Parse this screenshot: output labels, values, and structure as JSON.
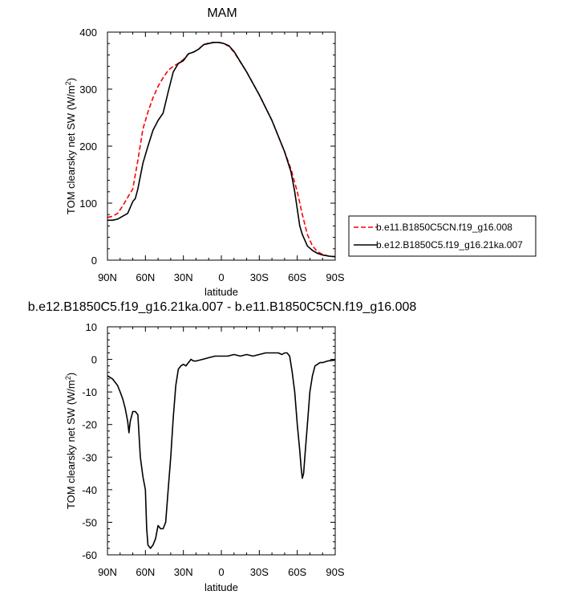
{
  "chart_data": [
    {
      "type": "line",
      "title": "MAM",
      "xlabel": "latitude",
      "ylabel_main": "TOM clearsky net SW (W/m",
      "ylabel_sup": "2",
      "ylabel_close": ")",
      "xlim": [
        90,
        -90
      ],
      "ylim": [
        0,
        400
      ],
      "x_ticks": [
        90,
        60,
        30,
        0,
        -30,
        -60,
        -90
      ],
      "x_tick_labels": [
        "90N",
        "60N",
        "30N",
        "0",
        "30S",
        "60S",
        "90S"
      ],
      "y_ticks": [
        0,
        100,
        200,
        300,
        400
      ],
      "y_tick_labels": [
        "0",
        "100",
        "200",
        "300",
        "400"
      ],
      "legend_position": "right",
      "series": [
        {
          "name": "b.e11.B1850C5CN.f19_g16.008",
          "color": "#ff0000",
          "dash": "dashed",
          "x": [
            90,
            86,
            82,
            78,
            74,
            70,
            66,
            62,
            58,
            54,
            50,
            46,
            42,
            38,
            34,
            30,
            26,
            22,
            18,
            14,
            10,
            6,
            2,
            -2,
            -6,
            -10,
            -20,
            -30,
            -40,
            -50,
            -55,
            -60,
            -64,
            -68,
            -72,
            -76,
            -80,
            -85,
            -90
          ],
          "values": [
            75,
            77,
            82,
            95,
            110,
            125,
            175,
            230,
            260,
            285,
            305,
            320,
            333,
            340,
            345,
            352,
            362,
            365,
            370,
            378,
            381,
            382,
            382,
            380,
            375,
            365,
            330,
            290,
            245,
            190,
            160,
            120,
            80,
            45,
            25,
            15,
            10,
            7,
            6
          ]
        },
        {
          "name": "b.e12.B1850C5.f19_g16.21ka.007",
          "color": "#000000",
          "dash": "solid",
          "x": [
            90,
            86,
            82,
            78,
            74,
            70,
            68,
            66,
            62,
            58,
            54,
            50,
            46,
            42,
            38,
            34,
            30,
            26,
            22,
            18,
            14,
            10,
            6,
            2,
            -2,
            -6,
            -10,
            -20,
            -30,
            -40,
            -50,
            -55,
            -58,
            -62,
            -64,
            -68,
            -72,
            -76,
            -80,
            -85,
            -90
          ],
          "values": [
            70,
            70,
            72,
            77,
            82,
            103,
            108,
            125,
            170,
            200,
            228,
            245,
            258,
            295,
            330,
            345,
            350,
            362,
            365,
            370,
            378,
            380,
            382,
            382,
            380,
            376,
            366,
            330,
            290,
            245,
            190,
            155,
            120,
            60,
            45,
            25,
            17,
            12,
            9,
            7,
            6
          ]
        }
      ]
    },
    {
      "type": "line",
      "title": "b.e12.B1850C5.f19_g16.21ka.007 - b.e11.B1850C5CN.f19_g16.008",
      "xlabel": "latitude",
      "ylabel_main": "TOM clearsky net SW (W/m",
      "ylabel_sup": "2",
      "ylabel_close": ")",
      "xlim": [
        90,
        -90
      ],
      "ylim": [
        -60,
        10
      ],
      "x_ticks": [
        90,
        60,
        30,
        0,
        -30,
        -60,
        -90
      ],
      "x_tick_labels": [
        "90N",
        "60N",
        "30N",
        "0",
        "30S",
        "60S",
        "90S"
      ],
      "y_ticks": [
        -60,
        -50,
        -40,
        -30,
        -20,
        -10,
        0,
        10
      ],
      "y_tick_labels": [
        "-60",
        "-50",
        "-40",
        "-30",
        "-20",
        "-10",
        "0",
        "10"
      ],
      "series": [
        {
          "name": "",
          "color": "#000000",
          "dash": "solid",
          "x": [
            90,
            86,
            82,
            80,
            78,
            76,
            74,
            73,
            72,
            70,
            68,
            66,
            64,
            62,
            60,
            59,
            58,
            56,
            54,
            52,
            50,
            48,
            46,
            44,
            42,
            40,
            38,
            36,
            34,
            32,
            30,
            28,
            26,
            24,
            22,
            20,
            15,
            10,
            5,
            0,
            -5,
            -10,
            -15,
            -20,
            -25,
            -30,
            -35,
            -40,
            -45,
            -48,
            -50,
            -52,
            -54,
            -56,
            -58,
            -60,
            -62,
            -63,
            -64,
            -65,
            -66,
            -68,
            -70,
            -72,
            -74,
            -76,
            -78,
            -80,
            -84,
            -88,
            -90
          ],
          "values": [
            -5,
            -6,
            -8,
            -10,
            -12,
            -15,
            -19,
            -22.5,
            -19,
            -16,
            -16,
            -17,
            -30,
            -36,
            -40,
            -52,
            -57,
            -58,
            -57,
            -55,
            -51,
            -52,
            -52,
            -50,
            -40,
            -30,
            -18,
            -8,
            -3,
            -2,
            -1.5,
            -2,
            -1,
            0,
            -0.5,
            -0.5,
            0,
            0.5,
            1,
            1,
            1,
            1.5,
            1,
            1.5,
            1,
            1.5,
            2,
            2,
            2,
            1.5,
            2,
            2,
            1,
            -4,
            -10,
            -20,
            -28,
            -33,
            -36.5,
            -35,
            -30,
            -20,
            -10,
            -5,
            -2,
            -1.5,
            -1,
            -1,
            -0.5,
            -0.3,
            -0.2
          ]
        }
      ]
    }
  ]
}
